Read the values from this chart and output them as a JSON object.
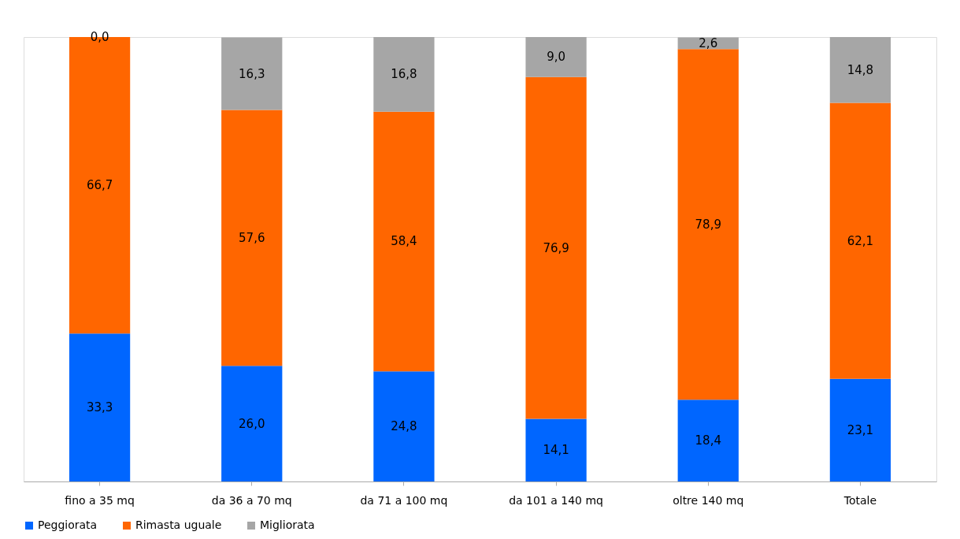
{
  "chart_data": {
    "type": "bar",
    "stacked": true,
    "legend": "bottom",
    "grid": false,
    "categories": [
      "fino a 35 mq",
      "da 36 a 70 mq",
      "da 71 a 100 mq",
      "da 101 a 140 mq",
      "oltre 140 mq",
      "Totale"
    ],
    "series": [
      {
        "name": "Peggiorata",
        "color": "#0066ff",
        "values": [
          33.3,
          26.0,
          24.8,
          14.1,
          18.4,
          23.1
        ],
        "value_labels": [
          "33,3",
          "26,0",
          "24,8",
          "14,1",
          "18,4",
          "23,1"
        ]
      },
      {
        "name": "Rimasta uguale",
        "color": "#ff6600",
        "values": [
          66.7,
          57.6,
          58.4,
          76.9,
          78.9,
          62.1
        ],
        "value_labels": [
          "66,7",
          "57,6",
          "58,4",
          "76,9",
          "78,9",
          "62,1"
        ]
      },
      {
        "name": "Migliorata",
        "color": "#a6a6a6",
        "values": [
          0.0,
          16.3,
          16.8,
          9.0,
          2.6,
          14.8
        ],
        "value_labels": [
          "0,0",
          "16,3",
          "16,8",
          "9,0",
          "2,6",
          "14,8"
        ]
      }
    ]
  }
}
